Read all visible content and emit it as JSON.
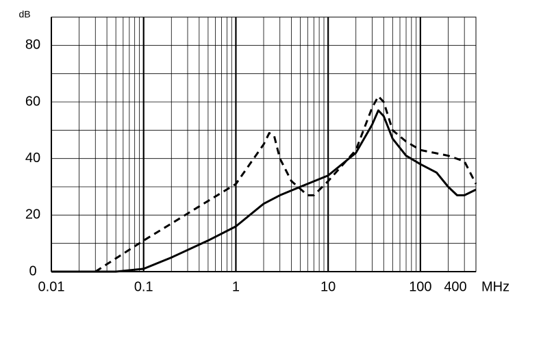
{
  "chart_data": {
    "type": "line",
    "y_unit": "dB",
    "x_unit": "MHz",
    "xlim": [
      0.01,
      400
    ],
    "xticks": [
      0.01,
      0.1,
      1,
      10,
      100,
      400
    ],
    "xscale": "log",
    "ylim": [
      0,
      90
    ],
    "yticks": [
      0,
      20,
      40,
      60,
      80
    ],
    "grid": true,
    "series": [
      {
        "color": "#000000",
        "dash": "solid",
        "x": [
          0.01,
          0.05,
          0.1,
          0.2,
          0.5,
          1,
          2,
          3,
          5,
          10,
          20,
          30,
          35,
          40,
          50,
          70,
          100,
          150,
          200,
          250,
          300,
          400
        ],
        "values": [
          0,
          0,
          1,
          5,
          11,
          16,
          24,
          27,
          30,
          34,
          42,
          52,
          57,
          55,
          47,
          41,
          38,
          35,
          30,
          27,
          27,
          29
        ]
      },
      {
        "color": "#000000",
        "dash": "dashed",
        "x": [
          0.03,
          0.1,
          0.2,
          0.5,
          1,
          2,
          2.3,
          2.6,
          3,
          4,
          6,
          7,
          10,
          20,
          30,
          35,
          40,
          50,
          70,
          100,
          200,
          300,
          400
        ],
        "values": [
          0,
          11,
          17,
          25,
          31,
          45,
          49,
          48,
          40,
          32,
          27,
          27,
          32,
          43,
          58,
          62,
          60,
          50,
          46,
          43,
          41,
          39,
          31
        ]
      }
    ]
  }
}
